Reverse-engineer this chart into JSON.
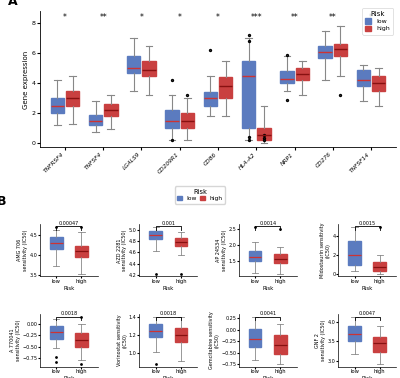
{
  "panel_A": {
    "genes": [
      "TNFRSF4",
      "TNFSF4",
      "LGALS9",
      "CD209R1",
      "CD86",
      "HLA-A2",
      "NRP1",
      "CD276",
      "TNFSF14"
    ],
    "significance": [
      "*",
      "**",
      "*",
      "*",
      "*",
      "***",
      "**",
      "**",
      "*"
    ],
    "low_boxes": [
      {
        "q1": 2.0,
        "median": 2.5,
        "q3": 3.0,
        "whislo": 1.2,
        "whishi": 4.2,
        "fliers": []
      },
      {
        "q1": 1.2,
        "median": 1.5,
        "q3": 1.9,
        "whislo": 0.7,
        "whishi": 2.8,
        "fliers": []
      },
      {
        "q1": 4.7,
        "median": 5.0,
        "q3": 5.8,
        "whislo": 3.5,
        "whishi": 7.0,
        "fliers": []
      },
      {
        "q1": 1.0,
        "median": 1.5,
        "q3": 2.2,
        "whislo": 0.2,
        "whishi": 3.2,
        "fliers": [
          0.2,
          4.2
        ]
      },
      {
        "q1": 2.5,
        "median": 3.0,
        "q3": 3.4,
        "whislo": 1.8,
        "whishi": 4.5,
        "fliers": [
          6.2
        ]
      },
      {
        "q1": 1.0,
        "median": 4.5,
        "q3": 5.5,
        "whislo": 0.2,
        "whishi": 7.0,
        "fliers": [
          0.2,
          0.4,
          6.8,
          7.2
        ]
      },
      {
        "q1": 4.0,
        "median": 4.3,
        "q3": 4.8,
        "whislo": 3.5,
        "whishi": 5.8,
        "fliers": [
          5.9,
          2.9
        ]
      },
      {
        "q1": 5.7,
        "median": 6.1,
        "q3": 6.5,
        "whislo": 4.2,
        "whishi": 7.5,
        "fliers": []
      },
      {
        "q1": 3.8,
        "median": 4.2,
        "q3": 4.9,
        "whislo": 2.8,
        "whishi": 5.2,
        "fliers": []
      }
    ],
    "high_boxes": [
      {
        "q1": 2.5,
        "median": 3.0,
        "q3": 3.5,
        "whislo": 1.3,
        "whishi": 4.5,
        "fliers": []
      },
      {
        "q1": 1.8,
        "median": 2.2,
        "q3": 2.6,
        "whislo": 0.9,
        "whishi": 3.2,
        "fliers": []
      },
      {
        "q1": 4.5,
        "median": 4.9,
        "q3": 5.5,
        "whislo": 3.2,
        "whishi": 6.5,
        "fliers": []
      },
      {
        "q1": 1.0,
        "median": 1.5,
        "q3": 2.0,
        "whislo": 0.2,
        "whishi": 3.0,
        "fliers": [
          3.2
        ]
      },
      {
        "q1": 3.0,
        "median": 3.8,
        "q3": 4.4,
        "whislo": 1.8,
        "whishi": 5.5,
        "fliers": []
      },
      {
        "q1": 0.2,
        "median": 0.5,
        "q3": 1.0,
        "whislo": 0.0,
        "whishi": 2.5,
        "fliers": [
          0.2,
          0.3,
          0.5
        ]
      },
      {
        "q1": 4.2,
        "median": 4.6,
        "q3": 5.0,
        "whislo": 3.2,
        "whishi": 5.5,
        "fliers": []
      },
      {
        "q1": 5.8,
        "median": 6.3,
        "q3": 6.6,
        "whislo": 4.5,
        "whishi": 7.8,
        "fliers": [
          3.2
        ]
      },
      {
        "q1": 3.5,
        "median": 4.0,
        "q3": 4.5,
        "whislo": 2.5,
        "whishi": 5.0,
        "fliers": []
      }
    ],
    "low_color": "#5B7BBF",
    "high_color": "#C94040",
    "ylabel": "Gene expression",
    "ylim": [
      -0.3,
      8.8
    ]
  },
  "panel_B": {
    "pvalues": [
      "0.00047",
      "0.001",
      "0.0014",
      "0.0015",
      "0.0018",
      "0.0018",
      "0.0041",
      "0.0047"
    ],
    "ylabels": [
      "AMG 706 sensitivity (IC50)",
      "AZD 2281 sensitivity (IC50)",
      "AP 24534 sensitivity (IC50)",
      "Midostaurin sensitivity (IC50)",
      "A 770041 sensitivity (IC50)",
      "Vorinostat sensitivity (IC50)",
      "Gemcitabine sensitivity (IC50)",
      "GNF 2 sensitivity (IC50)"
    ],
    "low_boxes": [
      {
        "q1": 4.15,
        "median": 4.3,
        "q3": 4.45,
        "whislo": 3.72,
        "whishi": 4.63,
        "fliers": [
          4.72
        ]
      },
      {
        "q1": 4.83,
        "median": 4.9,
        "q3": 4.97,
        "whislo": 4.63,
        "whishi": 5.05,
        "fliers": [
          4.22
        ]
      },
      {
        "q1": 1.52,
        "median": 1.65,
        "q3": 1.82,
        "whislo": 1.12,
        "whishi": 2.1,
        "fliers": [
          2.58
        ]
      },
      {
        "q1": 1.0,
        "median": 2.0,
        "q3": 3.5,
        "whislo": 0.3,
        "whishi": 5.0,
        "fliers": []
      },
      {
        "q1": -0.32,
        "median": -0.18,
        "q3": -0.05,
        "whislo": -0.52,
        "whishi": 0.1,
        "fliers": [
          -0.72,
          -0.82
        ]
      },
      {
        "q1": 1.18,
        "median": 1.25,
        "q3": 1.32,
        "whislo": 1.02,
        "whishi": 1.4,
        "fliers": [
          0.88
        ]
      },
      {
        "q1": -0.38,
        "median": -0.2,
        "q3": 0.02,
        "whislo": -0.65,
        "whishi": 0.28,
        "fliers": []
      },
      {
        "q1": 3.5,
        "median": 3.68,
        "q3": 3.88,
        "whislo": 3.18,
        "whishi": 4.12,
        "fliers": []
      }
    ],
    "high_boxes": [
      {
        "q1": 3.95,
        "median": 4.1,
        "q3": 4.22,
        "whislo": 3.52,
        "whishi": 4.58,
        "fliers": [
          4.72
        ]
      },
      {
        "q1": 4.72,
        "median": 4.78,
        "q3": 4.85,
        "whislo": 4.55,
        "whishi": 4.95,
        "fliers": [
          4.22
        ]
      },
      {
        "q1": 1.45,
        "median": 1.58,
        "q3": 1.72,
        "whislo": 1.1,
        "whishi": 1.95,
        "fliers": [
          2.5
        ]
      },
      {
        "q1": 0.3,
        "median": 0.8,
        "q3": 1.3,
        "whislo": 0.0,
        "whishi": 2.0,
        "fliers": [
          5.0
        ]
      },
      {
        "q1": -0.5,
        "median": -0.35,
        "q3": -0.2,
        "whislo": -0.78,
        "whishi": 0.0,
        "fliers": [
          -0.88,
          0.15
        ]
      },
      {
        "q1": 1.12,
        "median": 1.2,
        "q3": 1.28,
        "whislo": 0.92,
        "whishi": 1.4,
        "fliers": []
      },
      {
        "q1": -0.52,
        "median": -0.32,
        "q3": -0.12,
        "whislo": -0.75,
        "whishi": 0.12,
        "fliers": []
      },
      {
        "q1": 3.22,
        "median": 3.45,
        "q3": 3.6,
        "whislo": 2.92,
        "whishi": 3.9,
        "fliers": []
      }
    ],
    "low_color": "#5B7BBF",
    "high_color": "#C94040"
  }
}
